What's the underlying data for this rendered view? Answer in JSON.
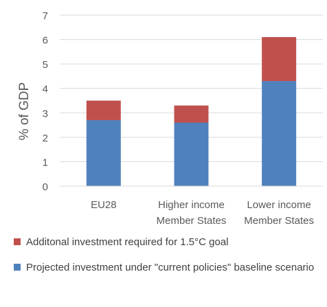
{
  "chart_data": {
    "type": "bar",
    "stacked": true,
    "categories": [
      [
        "EU28"
      ],
      [
        "Higher income",
        "Member States"
      ],
      [
        "Lower income",
        "Member States"
      ]
    ],
    "series": [
      {
        "name": "Projected investment under \"current policies\" baseline scenario",
        "values": [
          2.7,
          2.6,
          4.3
        ],
        "color": "#4f81bd"
      },
      {
        "name": "Additonal investment required for 1.5°C goal",
        "values": [
          0.8,
          0.7,
          1.8
        ],
        "color": "#c0504d"
      }
    ],
    "ylabel": "% of GDP",
    "xlabel": "",
    "title": "",
    "ylim": [
      0,
      7
    ],
    "yticks": [
      0,
      1,
      2,
      3,
      4,
      5,
      6,
      7
    ],
    "grid": true,
    "legend_position": "bottom"
  },
  "legend": {
    "items": [
      {
        "label": "Additonal investment required for 1.5°C goal",
        "color": "#c0504d"
      },
      {
        "label": "Projected investment under \"current policies\" baseline scenario",
        "color": "#4f81bd"
      }
    ]
  }
}
